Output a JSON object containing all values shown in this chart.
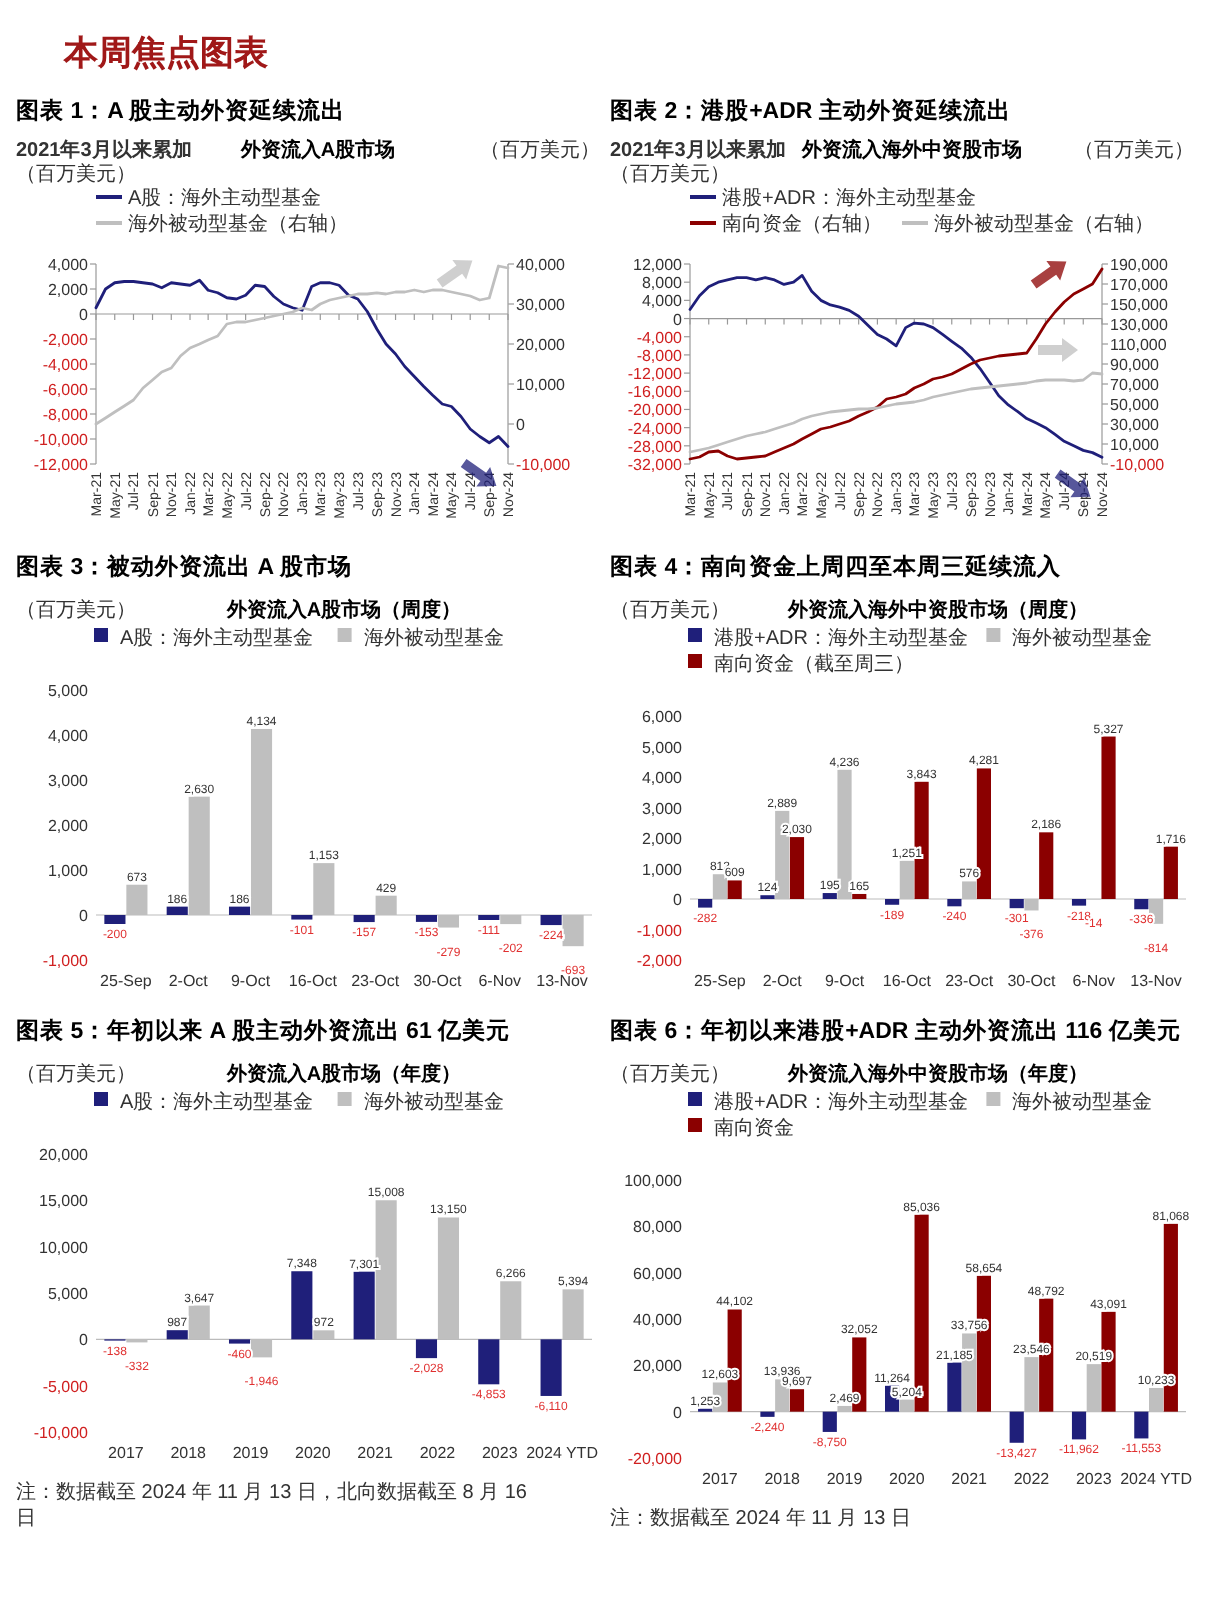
{
  "chart_data": [
    {
      "type": "other",
      "title": "本周焦点图表"
    },
    {
      "type": "line",
      "title": "图表 1：A 股主动外资延续流出",
      "subtitle": "外资流入A股市场",
      "ylabel": "（百万美元）",
      "y2label": "（百万美元）",
      "annotations": [
        "2021年3月以来累加"
      ],
      "legend": "top",
      "x": [
        "2021-03",
        "2021-04",
        "2021-05",
        "2021-06",
        "2021-07",
        "2021-08",
        "2021-09",
        "2021-10",
        "2021-11",
        "2021-12",
        "2022-01",
        "2022-02",
        "2022-03",
        "2022-04",
        "2022-05",
        "2022-06",
        "2022-07",
        "2022-08",
        "2022-09",
        "2022-10",
        "2022-11",
        "2022-12",
        "2023-01",
        "2023-02",
        "2023-03",
        "2023-04",
        "2023-05",
        "2023-06",
        "2023-07",
        "2023-08",
        "2023-09",
        "2023-10",
        "2023-11",
        "2023-12",
        "2024-01",
        "2024-02",
        "2024-03",
        "2024-04",
        "2024-05",
        "2024-06",
        "2024-07",
        "2024-08",
        "2024-09",
        "2024-10",
        "2024-11"
      ],
      "xlim": [
        "2021-03",
        "2024-11"
      ],
      "xticks": [
        {
          "value": "2021-03",
          "label": "Mar-21"
        },
        {
          "value": "2021-05",
          "label": "May-21"
        },
        {
          "value": "2021-07",
          "label": "Jul-21"
        },
        {
          "value": "2021-09",
          "label": "Sep-21"
        },
        {
          "value": "2021-11",
          "label": "Nov-21"
        },
        {
          "value": "2022-01",
          "label": "Jan-22"
        },
        {
          "value": "2022-03",
          "label": "Mar-22"
        },
        {
          "value": "2022-05",
          "label": "May-22"
        },
        {
          "value": "2022-07",
          "label": "Jul-22"
        },
        {
          "value": "2022-09",
          "label": "Sep-22"
        },
        {
          "value": "2022-11",
          "label": "Nov-22"
        },
        {
          "value": "2023-01",
          "label": "Jan-23"
        },
        {
          "value": "2023-03",
          "label": "Mar-23"
        },
        {
          "value": "2023-05",
          "label": "May-23"
        },
        {
          "value": "2023-07",
          "label": "Jul-23"
        },
        {
          "value": "2023-09",
          "label": "Sep-23"
        },
        {
          "value": "2023-11",
          "label": "Nov-23"
        },
        {
          "value": "2024-01",
          "label": "Jan-24"
        },
        {
          "value": "2024-03",
          "label": "Mar-24"
        },
        {
          "value": "2024-05",
          "label": "May-24"
        },
        {
          "value": "2024-07",
          "label": "Jul-24"
        },
        {
          "value": "2024-09",
          "label": "Sep-24"
        },
        {
          "value": "2024-11",
          "label": "Nov-24"
        }
      ],
      "ylim": [
        -12000,
        4000
      ],
      "yticks": [
        {
          "value": -12000,
          "label": "-12,000"
        },
        {
          "value": -10000,
          "label": "-10,000"
        },
        {
          "value": -8000,
          "label": "-8,000"
        },
        {
          "value": -6000,
          "label": "-6,000"
        },
        {
          "value": -4000,
          "label": "-4,000"
        },
        {
          "value": -2000,
          "label": "-2,000"
        },
        {
          "value": 0,
          "label": "0"
        },
        {
          "value": 2000,
          "label": "2,000"
        },
        {
          "value": 4000,
          "label": "4,000"
        }
      ],
      "y2lim": [
        -10000,
        40000
      ],
      "y2ticks": [
        {
          "value": -10000,
          "label": "-10,000"
        },
        {
          "value": 0,
          "label": "0"
        },
        {
          "value": 10000,
          "label": "10,000"
        },
        {
          "value": 20000,
          "label": "20,000"
        },
        {
          "value": 30000,
          "label": "30,000"
        },
        {
          "value": 40000,
          "label": "40,000"
        }
      ],
      "series": [
        {
          "name": "A股：海外主动型基金",
          "type": "line",
          "axis": "y",
          "color": "#1f1f7a",
          "values": [
            500,
            2000,
            2500,
            2600,
            2600,
            2500,
            2400,
            2100,
            2500,
            2400,
            2300,
            2700,
            1900,
            1700,
            1300,
            1200,
            1500,
            2300,
            2200,
            1400,
            800,
            500,
            300,
            2200,
            2500,
            2500,
            2300,
            1500,
            1200,
            200,
            -1200,
            -2400,
            -3200,
            -4200,
            -5000,
            -5800,
            -6500,
            -7200,
            -7400,
            -8200,
            -9200,
            -9800,
            -10300,
            -9800,
            -10600
          ]
        },
        {
          "name": "海外被动型基金（右轴）",
          "type": "line",
          "axis": "y2",
          "color": "#bfbfbf",
          "values": [
            0,
            1500,
            3000,
            4500,
            6000,
            9000,
            11000,
            13000,
            14000,
            17000,
            19000,
            20000,
            21000,
            22000,
            25000,
            25500,
            25500,
            26000,
            26500,
            27000,
            27500,
            28000,
            29000,
            28500,
            30000,
            31000,
            31500,
            32000,
            32500,
            32500,
            32800,
            32500,
            33000,
            33000,
            33500,
            33000,
            33500,
            33500,
            33000,
            32500,
            32000,
            31000,
            31500,
            39500,
            39000
          ]
        }
      ]
    },
    {
      "type": "line",
      "title": "图表 2：港股+ADR 主动外资延续流出",
      "subtitle": "外资流入海外中资股市场",
      "ylabel": "（百万美元）",
      "y2label": "（百万美元）",
      "annotations": [
        "2021年3月以来累加"
      ],
      "legend": "top",
      "x": [
        "2021-03",
        "2021-04",
        "2021-05",
        "2021-06",
        "2021-07",
        "2021-08",
        "2021-09",
        "2021-10",
        "2021-11",
        "2021-12",
        "2022-01",
        "2022-02",
        "2022-03",
        "2022-04",
        "2022-05",
        "2022-06",
        "2022-07",
        "2022-08",
        "2022-09",
        "2022-10",
        "2022-11",
        "2022-12",
        "2023-01",
        "2023-02",
        "2023-03",
        "2023-04",
        "2023-05",
        "2023-06",
        "2023-07",
        "2023-08",
        "2023-09",
        "2023-10",
        "2023-11",
        "2023-12",
        "2024-01",
        "2024-02",
        "2024-03",
        "2024-04",
        "2024-05",
        "2024-06",
        "2024-07",
        "2024-08",
        "2024-09",
        "2024-10",
        "2024-11"
      ],
      "xlim": [
        "2021-03",
        "2024-11"
      ],
      "xticks": [
        {
          "value": "2021-03",
          "label": "Mar-21"
        },
        {
          "value": "2021-05",
          "label": "May-21"
        },
        {
          "value": "2021-07",
          "label": "Jul-21"
        },
        {
          "value": "2021-09",
          "label": "Sep-21"
        },
        {
          "value": "2021-11",
          "label": "Nov-21"
        },
        {
          "value": "2022-01",
          "label": "Jan-22"
        },
        {
          "value": "2022-03",
          "label": "Mar-22"
        },
        {
          "value": "2022-05",
          "label": "May-22"
        },
        {
          "value": "2022-07",
          "label": "Jul-22"
        },
        {
          "value": "2022-09",
          "label": "Sep-22"
        },
        {
          "value": "2022-11",
          "label": "Nov-22"
        },
        {
          "value": "2023-01",
          "label": "Jan-23"
        },
        {
          "value": "2023-03",
          "label": "Mar-23"
        },
        {
          "value": "2023-05",
          "label": "May-23"
        },
        {
          "value": "2023-07",
          "label": "Jul-23"
        },
        {
          "value": "2023-09",
          "label": "Sep-23"
        },
        {
          "value": "2023-11",
          "label": "Nov-23"
        },
        {
          "value": "2024-01",
          "label": "Jan-24"
        },
        {
          "value": "2024-03",
          "label": "Mar-24"
        },
        {
          "value": "2024-05",
          "label": "May-24"
        },
        {
          "value": "2024-07",
          "label": "Jul-24"
        },
        {
          "value": "2024-09",
          "label": "Sep-24"
        },
        {
          "value": "2024-11",
          "label": "Nov-24"
        }
      ],
      "ylim": [
        -32000,
        12000
      ],
      "yticks": [
        {
          "value": -32000,
          "label": "-32,000"
        },
        {
          "value": -28000,
          "label": "-28,000"
        },
        {
          "value": -24000,
          "label": "-24,000"
        },
        {
          "value": -20000,
          "label": "-20,000"
        },
        {
          "value": -16000,
          "label": "-16,000"
        },
        {
          "value": -12000,
          "label": "-12,000"
        },
        {
          "value": -8000,
          "label": "-8,000"
        },
        {
          "value": -4000,
          "label": "-4,000"
        },
        {
          "value": 0,
          "label": "0"
        },
        {
          "value": 4000,
          "label": "4,000"
        },
        {
          "value": 8000,
          "label": "8,000"
        },
        {
          "value": 12000,
          "label": "12,000"
        }
      ],
      "y2lim": [
        -10000,
        190000
      ],
      "y2ticks": [
        {
          "value": -10000,
          "label": "-10,000"
        },
        {
          "value": 10000,
          "label": "10,000"
        },
        {
          "value": 30000,
          "label": "30,000"
        },
        {
          "value": 50000,
          "label": "50,000"
        },
        {
          "value": 70000,
          "label": "70,000"
        },
        {
          "value": 90000,
          "label": "90,000"
        },
        {
          "value": 110000,
          "label": "110,000"
        },
        {
          "value": 130000,
          "label": "130,000"
        },
        {
          "value": 150000,
          "label": "150,000"
        },
        {
          "value": 170000,
          "label": "170,000"
        },
        {
          "value": 190000,
          "label": "190,000"
        }
      ],
      "series": [
        {
          "name": "港股+ADR：海外主动型基金",
          "type": "line",
          "axis": "y",
          "color": "#1f1f7a",
          "values": [
            2000,
            5000,
            7000,
            8000,
            8500,
            9000,
            9000,
            8500,
            9000,
            8500,
            7500,
            8000,
            9500,
            6000,
            4000,
            3000,
            2500,
            1800,
            500,
            -1500,
            -3500,
            -4500,
            -6000,
            -2000,
            -1000,
            -1200,
            -2000,
            -3500,
            -5000,
            -6500,
            -8500,
            -11000,
            -14000,
            -17000,
            -19000,
            -20500,
            -22000,
            -23000,
            -24000,
            -25500,
            -27000,
            -28000,
            -29000,
            -29500,
            -30500
          ]
        },
        {
          "name": "南向资金（右轴）",
          "type": "line",
          "axis": "y2",
          "color": "#8b0000",
          "values": [
            -5000,
            -3000,
            2000,
            3000,
            -2000,
            -5000,
            -4000,
            -3000,
            -2000,
            2000,
            6000,
            10000,
            15000,
            20000,
            25000,
            27000,
            30000,
            33000,
            38000,
            42000,
            47000,
            55000,
            57000,
            60000,
            66000,
            70000,
            75000,
            77000,
            80000,
            85000,
            90000,
            94000,
            96000,
            98000,
            99000,
            100000,
            101000,
            115000,
            130000,
            142000,
            152000,
            160000,
            165000,
            170000,
            185000
          ]
        },
        {
          "name": "海外被动型基金（右轴）",
          "type": "line",
          "axis": "y2",
          "color": "#bfbfbf",
          "values": [
            2000,
            4000,
            6000,
            9000,
            12000,
            15000,
            18000,
            20000,
            22000,
            25000,
            28000,
            31000,
            35000,
            38000,
            40000,
            42000,
            43000,
            44000,
            45000,
            45000,
            46000,
            48000,
            50000,
            51000,
            52000,
            54000,
            57000,
            59000,
            61000,
            63000,
            65000,
            66000,
            67000,
            68000,
            69000,
            70000,
            71000,
            73000,
            74000,
            74000,
            74000,
            73000,
            74000,
            81000,
            80000
          ]
        }
      ]
    },
    {
      "type": "bar",
      "title": "图表 3：被动外资流出 A 股市场",
      "subtitle": "外资流入A股市场（周度）",
      "ylabel": "（百万美元）",
      "legend": "top",
      "categories": [
        "25-Sep",
        "2-Oct",
        "9-Oct",
        "16-Oct",
        "23-Oct",
        "30-Oct",
        "6-Nov",
        "13-Nov"
      ],
      "ylim": [
        -1000,
        5000
      ],
      "yticks": [
        {
          "value": -1000,
          "label": "-1,000"
        },
        {
          "value": 0,
          "label": "0"
        },
        {
          "value": 1000,
          "label": "1,000"
        },
        {
          "value": 2000,
          "label": "2,000"
        },
        {
          "value": 3000,
          "label": "3,000"
        },
        {
          "value": 4000,
          "label": "4,000"
        },
        {
          "value": 5000,
          "label": "5,000"
        }
      ],
      "series": [
        {
          "name": "A股：海外主动型基金",
          "color": "#1f1f7a",
          "values": [
            -200,
            186,
            186,
            -101,
            -157,
            -153,
            -111,
            -224
          ],
          "value_labels": [
            "-200",
            "186",
            "186",
            "-101",
            "-157",
            "-153",
            "-111",
            "-224"
          ]
        },
        {
          "name": "海外被动型基金",
          "color": "#bfbfbf",
          "values": [
            673,
            2630,
            4134,
            1153,
            429,
            -279,
            -202,
            -693
          ],
          "value_labels": [
            "673",
            "2,630",
            "4,134",
            "1,153",
            "429",
            "-279",
            "-202",
            "-693"
          ]
        }
      ]
    },
    {
      "type": "bar",
      "title": "图表 4：南向资金上周四至本周三延续流入",
      "subtitle": "外资流入海外中资股市场（周度）",
      "ylabel": "（百万美元）",
      "legend": "top",
      "categories": [
        "25-Sep",
        "2-Oct",
        "9-Oct",
        "16-Oct",
        "23-Oct",
        "30-Oct",
        "6-Nov",
        "13-Nov"
      ],
      "ylim": [
        -2000,
        6000
      ],
      "yticks": [
        {
          "value": -2000,
          "label": "-2,000"
        },
        {
          "value": -1000,
          "label": "-1,000"
        },
        {
          "value": 0,
          "label": "0"
        },
        {
          "value": 1000,
          "label": "1,000"
        },
        {
          "value": 2000,
          "label": "2,000"
        },
        {
          "value": 3000,
          "label": "3,000"
        },
        {
          "value": 4000,
          "label": "4,000"
        },
        {
          "value": 5000,
          "label": "5,000"
        },
        {
          "value": 6000,
          "label": "6,000"
        }
      ],
      "series": [
        {
          "name": "港股+ADR：海外主动型基金",
          "color": "#1f1f7a",
          "values": [
            -282,
            124,
            195,
            -189,
            -240,
            -301,
            -218,
            -336
          ],
          "value_labels": [
            "-282",
            "124",
            "195",
            "-189",
            "-240",
            "-301",
            "-218",
            "-336"
          ]
        },
        {
          "name": "海外被动型基金",
          "color": "#bfbfbf",
          "values": [
            812,
            2889,
            4236,
            1251,
            576,
            -376,
            -14,
            -814
          ],
          "value_labels": [
            "812",
            "2,889",
            "4,236",
            "1,251",
            "576",
            "-376",
            "-14",
            "-814"
          ]
        },
        {
          "name": "南向资金（截至周三）",
          "color": "#8b0000",
          "values": [
            609,
            2030,
            165,
            3843,
            4281,
            2186,
            5327,
            1716
          ],
          "value_labels": [
            "609",
            "2,030",
            "165",
            "3,843",
            "4,281",
            "2,186",
            "5,327",
            "1,716"
          ]
        }
      ]
    },
    {
      "type": "bar",
      "title": "图表 5：年初以来 A 股主动外资流出 61 亿美元",
      "subtitle": "外资流入A股市场（年度）",
      "ylabel": "（百万美元）",
      "legend": "top",
      "annotations": [
        "注：数据截至 2024 年 11 月 13 日，北向数据截至 8 月 16 日"
      ],
      "categories": [
        "2017",
        "2018",
        "2019",
        "2020",
        "2021",
        "2022",
        "2023",
        "2024 YTD"
      ],
      "ylim": [
        -10000,
        20000
      ],
      "yticks": [
        {
          "value": -10000,
          "label": "-10,000"
        },
        {
          "value": -5000,
          "label": "-5,000"
        },
        {
          "value": 0,
          "label": "0"
        },
        {
          "value": 5000,
          "label": "5,000"
        },
        {
          "value": 10000,
          "label": "10,000"
        },
        {
          "value": 15000,
          "label": "15,000"
        },
        {
          "value": 20000,
          "label": "20,000"
        }
      ],
      "series": [
        {
          "name": "A股：海外主动型基金",
          "color": "#1f1f7a",
          "values": [
            -138,
            987,
            -460,
            7348,
            7301,
            -2028,
            -4853,
            -6110
          ],
          "value_labels": [
            "-138",
            "987",
            "-460",
            "7,348",
            "7,301",
            "-2,028",
            "-4,853",
            "-6,110"
          ]
        },
        {
          "name": "海外被动型基金",
          "color": "#bfbfbf",
          "values": [
            -332,
            3647,
            -1946,
            972,
            15008,
            13150,
            6266,
            5394
          ],
          "value_labels": [
            "-332",
            "3,647",
            "-1,946",
            "972",
            "15,008",
            "13,150",
            "6,266",
            "5,394"
          ]
        }
      ]
    },
    {
      "type": "bar",
      "title": "图表 6：年初以来港股+ADR 主动外资流出 116 亿美元",
      "subtitle": "外资流入海外中资股市场（年度）",
      "ylabel": "（百万美元）",
      "legend": "top",
      "annotations": [
        "注：数据截至 2024 年 11 月 13 日"
      ],
      "categories": [
        "2017",
        "2018",
        "2019",
        "2020",
        "2021",
        "2022",
        "2023",
        "2024 YTD"
      ],
      "ylim": [
        -20000,
        100000
      ],
      "yticks": [
        {
          "value": -20000,
          "label": "-20,000"
        },
        {
          "value": 0,
          "label": "0"
        },
        {
          "value": 20000,
          "label": "20,000"
        },
        {
          "value": 40000,
          "label": "40,000"
        },
        {
          "value": 60000,
          "label": "60,000"
        },
        {
          "value": 80000,
          "label": "80,000"
        },
        {
          "value": 100000,
          "label": "100,000"
        }
      ],
      "series": [
        {
          "name": "港股+ADR：海外主动型基金",
          "color": "#1f1f7a",
          "values": [
            1253,
            -2240,
            -8750,
            11264,
            21185,
            -13427,
            -11962,
            -11553
          ],
          "value_labels": [
            "1,253",
            "-2,240",
            "-8,750",
            "11,264",
            "21,185",
            "-13,427",
            "-11,962",
            "-11,553"
          ]
        },
        {
          "name": "海外被动型基金",
          "color": "#bfbfbf",
          "values": [
            12603,
            13936,
            2469,
            5204,
            33756,
            23546,
            20519,
            10233
          ],
          "value_labels": [
            "12,603",
            "13,936",
            "2,469",
            "5,204",
            "33,756",
            "23,546",
            "20,519",
            "10,233"
          ]
        },
        {
          "name": "南向资金",
          "color": "#8b0000",
          "values": [
            44102,
            9697,
            32052,
            85036,
            58654,
            48792,
            43091,
            81068
          ],
          "value_labels": [
            "44,102",
            "9,697",
            "32,052",
            "85,036",
            "58,654",
            "48,792",
            "43,091",
            "81,068"
          ]
        }
      ]
    }
  ]
}
